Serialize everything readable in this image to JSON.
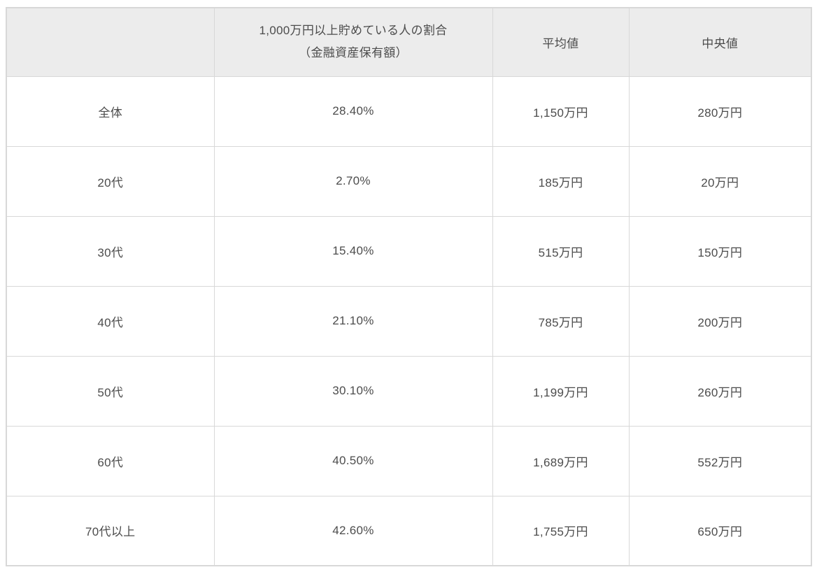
{
  "colors": {
    "header_bg": "#ececec",
    "border": "#d8d8d8",
    "text": "#4c4c4c",
    "row_bg": "#ffffff"
  },
  "table": {
    "header": {
      "col0": "",
      "col1_line1": "1,000万円以上貯めている人の割合",
      "col1_line2": "（金融資産保有額）",
      "col2": "平均値",
      "col3": "中央値"
    },
    "rows": [
      {
        "label": "全体",
        "ratio": "28.40%",
        "mean": "1,150万円",
        "median": "280万円"
      },
      {
        "label": "20代",
        "ratio": "2.70%",
        "mean": "185万円",
        "median": "20万円"
      },
      {
        "label": "30代",
        "ratio": "15.40%",
        "mean": "515万円",
        "median": "150万円"
      },
      {
        "label": "40代",
        "ratio": "21.10%",
        "mean": "785万円",
        "median": "200万円"
      },
      {
        "label": "50代",
        "ratio": "30.10%",
        "mean": "1,199万円",
        "median": "260万円"
      },
      {
        "label": "60代",
        "ratio": "40.50%",
        "mean": "1,689万円",
        "median": "552万円"
      },
      {
        "label": "70代以上",
        "ratio": "42.60%",
        "mean": "1,755万円",
        "median": "650万円"
      }
    ]
  },
  "chart_data": {
    "type": "table",
    "columns": [
      "",
      "1,000万円以上貯めている人の割合（金融資産保有額）",
      "平均値",
      "中央値"
    ],
    "categories": [
      "全体",
      "20代",
      "30代",
      "40代",
      "50代",
      "60代",
      "70代以上"
    ],
    "series": [
      {
        "name": "1,000万円以上貯めている人の割合（%）",
        "values": [
          28.4,
          2.7,
          15.4,
          21.1,
          30.1,
          40.5,
          42.6
        ]
      },
      {
        "name": "平均値（万円）",
        "values": [
          1150,
          185,
          515,
          785,
          1199,
          1689,
          1755
        ]
      },
      {
        "name": "中央値（万円）",
        "values": [
          280,
          20,
          150,
          200,
          260,
          552,
          650
        ]
      }
    ],
    "title": "",
    "xlabel": "",
    "ylabel": "",
    "legend": false,
    "grid": true
  }
}
